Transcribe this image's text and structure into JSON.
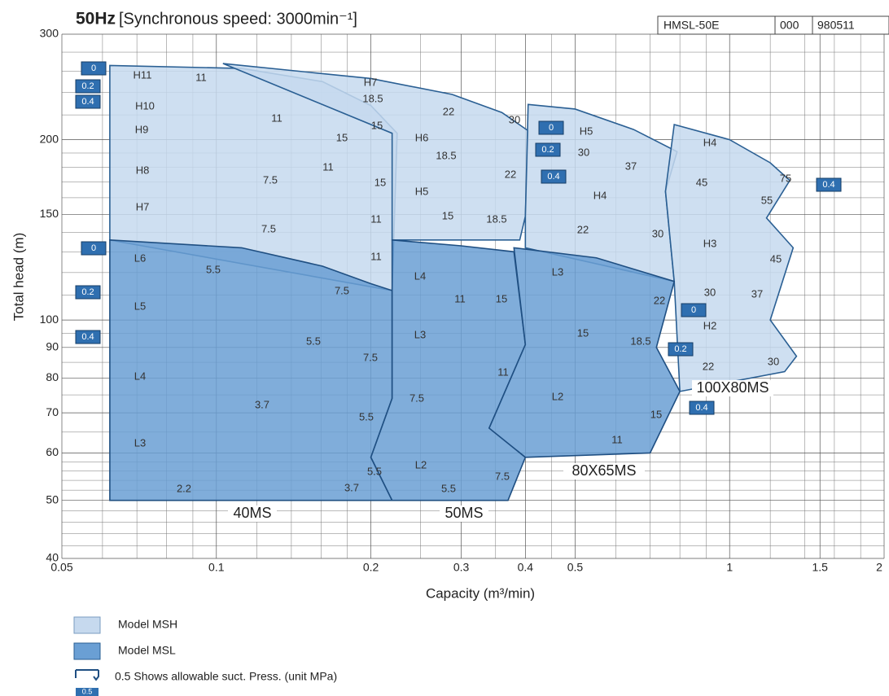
{
  "chart_data": {
    "type": "region",
    "title": "50Hz",
    "subtitle": "[Synchronous speed: 3000min⁻¹]",
    "document_number": [
      "HMSL-50E",
      "000",
      "980511"
    ],
    "x_label": "Capacity  (m³/min)",
    "y_label": "Total head  (m)",
    "log_x": true,
    "log_y": true,
    "xlim": [
      0.05,
      2
    ],
    "ylim": [
      40,
      300
    ],
    "xticks": [
      0.05,
      0.1,
      0.2,
      0.3,
      0.4,
      0.5,
      1,
      1.5,
      2
    ],
    "yticks": [
      40,
      50,
      60,
      70,
      80,
      90,
      100,
      150,
      200,
      300
    ],
    "xminor": [
      0.06,
      0.07,
      0.08,
      0.09,
      0.12,
      0.14,
      0.16,
      0.18,
      0.25,
      0.35,
      0.45,
      0.6,
      0.7,
      0.8,
      0.9,
      1.2,
      1.4,
      1.6,
      1.8
    ],
    "yminor": [
      42,
      44,
      46,
      48,
      52,
      54,
      56,
      58,
      65,
      75,
      85,
      95,
      110,
      120,
      130,
      140,
      160,
      170,
      180,
      190,
      220,
      240,
      260,
      280
    ],
    "grid": true,
    "series": [
      {
        "name": "Model MSH",
        "color": "#c6d9ee",
        "edge": "#2a5f93",
        "regions": [
          [
            [
              0.062,
              266
            ],
            [
              0.112,
              263
            ],
            [
              0.161,
              250
            ],
            [
              0.2,
              228
            ],
            [
              0.225,
              205
            ],
            [
              0.22,
              112
            ],
            [
              0.062,
              136
            ]
          ],
          [
            [
              0.103,
              268
            ],
            [
              0.2,
              253
            ],
            [
              0.288,
              238
            ],
            [
              0.36,
              222
            ],
            [
              0.405,
              207
            ],
            [
              0.4,
              149
            ],
            [
              0.39,
              136
            ],
            [
              0.22,
              136
            ],
            [
              0.22,
              205
            ]
          ],
          [
            [
              0.405,
              229
            ],
            [
              0.5,
              225
            ],
            [
              0.65,
              208
            ],
            [
              0.79,
              191
            ],
            [
              0.75,
              164
            ],
            [
              0.78,
              116
            ],
            [
              0.4,
              132
            ],
            [
              0.4,
              149
            ]
          ],
          [
            [
              0.78,
              212
            ],
            [
              1.0,
              200
            ],
            [
              1.2,
              183
            ],
            [
              1.31,
              171
            ],
            [
              1.18,
              148
            ],
            [
              1.33,
              132
            ],
            [
              1.2,
              100
            ],
            [
              1.35,
              87
            ],
            [
              1.28,
              82
            ],
            [
              0.8,
              76
            ],
            [
              0.78,
              116
            ],
            [
              0.75,
              164
            ]
          ]
        ]
      },
      {
        "name": "Model MSL",
        "color": "#6a9fd4",
        "edge": "#1f4f82",
        "regions": [
          [
            [
              0.062,
              136
            ],
            [
              0.112,
              132
            ],
            [
              0.161,
              123
            ],
            [
              0.2,
              115
            ],
            [
              0.22,
              112
            ],
            [
              0.22,
              74
            ],
            [
              0.2,
              59
            ],
            [
              0.22,
              50
            ],
            [
              0.062,
              50
            ]
          ],
          [
            [
              0.22,
              136
            ],
            [
              0.3,
              133
            ],
            [
              0.38,
              130
            ],
            [
              0.4,
              91
            ],
            [
              0.34,
              66
            ],
            [
              0.4,
              59
            ],
            [
              0.37,
              50
            ],
            [
              0.22,
              50
            ],
            [
              0.2,
              59
            ],
            [
              0.22,
              74
            ]
          ],
          [
            [
              0.38,
              132
            ],
            [
              0.55,
              127
            ],
            [
              0.78,
              116
            ],
            [
              0.72,
              90
            ],
            [
              0.8,
              76
            ],
            [
              0.7,
              60
            ],
            [
              0.4,
              59
            ],
            [
              0.34,
              66
            ],
            [
              0.4,
              91
            ]
          ]
        ]
      }
    ],
    "frames": [
      "40MS",
      "50MS",
      "80X65MS",
      "100X80MS"
    ],
    "annotations": [
      "H11",
      "11",
      "H10",
      "H9",
      "H8",
      "H7",
      "L6",
      "L5",
      "L4",
      "L3",
      "11",
      "15",
      "11",
      "7.5",
      "7.5",
      "5.5",
      "7.5",
      "5.5",
      "7.5",
      "3.7",
      "5.5",
      "2.2",
      "3.7",
      "5.5",
      "15",
      "15",
      "11",
      "11",
      "H7",
      "18.5",
      "22",
      "30",
      "H6",
      "18.5",
      "22",
      "H5",
      "15",
      "18.5",
      "L4",
      "11",
      "15",
      "L3",
      "11",
      "7.5",
      "L2",
      "5.5",
      "7.5",
      "H5",
      "30",
      "37",
      "H4",
      "22",
      "30",
      "L3",
      "22",
      "15",
      "18.5",
      "L2",
      "15",
      "11",
      "H4",
      "45",
      "55",
      "75",
      "H3",
      "45",
      "30",
      "37",
      "H2",
      "22",
      "30"
    ],
    "pressure_tags": [
      "0",
      "0.2",
      "0.4",
      "0",
      "0.2",
      "0.4",
      "0",
      "0.2",
      "0.4",
      "0",
      "0.2",
      "0.4",
      "0.4"
    ],
    "suction_tag": "0.5",
    "suction_note": "0.5 Shows allowable suct. Press. (unit MPa)"
  }
}
